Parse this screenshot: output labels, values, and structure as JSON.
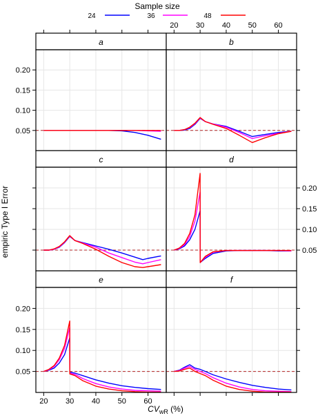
{
  "chart_data": {
    "type": "line",
    "legend": {
      "title": "Sample size",
      "placement": "top",
      "entries": [
        {
          "label": "24",
          "color": "#0000ff"
        },
        {
          "label": "36",
          "color": "#ff00ff"
        },
        {
          "label": "48",
          "color": "#ff0000"
        }
      ]
    },
    "xlabel_main": "CV",
    "xlabel_sub": "wR",
    "xlabel_unit": " (%)",
    "ylabel": "empiric Type I Error",
    "xlim": [
      17,
      67
    ],
    "ylim": [
      0,
      0.25
    ],
    "xticks": [
      20,
      30,
      40,
      50,
      60
    ],
    "yticks": [
      0.05,
      0.1,
      0.15,
      0.2
    ],
    "ytick_labels": [
      "0.05",
      "0.10",
      "0.15",
      "0.20"
    ],
    "reference_line": {
      "y": 0.05,
      "style": "dashed",
      "color": "#b22222"
    },
    "grid": true,
    "panels": [
      {
        "label": "a",
        "series": [
          {
            "name": "24",
            "x": [
              20,
              30,
              40,
              45,
              50,
              55,
              60,
              65
            ],
            "y": [
              0.05,
              0.05,
              0.05,
              0.05,
              0.049,
              0.045,
              0.038,
              0.028
            ]
          },
          {
            "name": "36",
            "x": [
              20,
              30,
              40,
              50,
              55,
              60,
              65
            ],
            "y": [
              0.05,
              0.05,
              0.05,
              0.05,
              0.05,
              0.049,
              0.048
            ]
          },
          {
            "name": "48",
            "x": [
              20,
              30,
              40,
              50,
              60,
              65
            ],
            "y": [
              0.05,
              0.05,
              0.05,
              0.05,
              0.05,
              0.05
            ]
          }
        ]
      },
      {
        "label": "b",
        "series": [
          {
            "name": "24",
            "x": [
              20,
              22,
              24,
              26,
              28,
              30,
              32,
              35,
              40,
              45,
              50,
              55,
              60,
              65
            ],
            "y": [
              0.05,
              0.05,
              0.051,
              0.055,
              0.065,
              0.08,
              0.072,
              0.066,
              0.06,
              0.048,
              0.035,
              0.04,
              0.045,
              0.048
            ]
          },
          {
            "name": "36",
            "x": [
              20,
              22,
              24,
              26,
              28,
              30,
              32,
              35,
              40,
              45,
              50,
              55,
              60,
              65
            ],
            "y": [
              0.05,
              0.05,
              0.052,
              0.057,
              0.067,
              0.081,
              0.072,
              0.066,
              0.058,
              0.045,
              0.03,
              0.037,
              0.043,
              0.048
            ]
          },
          {
            "name": "48",
            "x": [
              20,
              22,
              24,
              26,
              28,
              30,
              32,
              35,
              40,
              45,
              50,
              55,
              60,
              65
            ],
            "y": [
              0.05,
              0.05,
              0.052,
              0.058,
              0.068,
              0.082,
              0.072,
              0.065,
              0.055,
              0.038,
              0.02,
              0.032,
              0.042,
              0.048
            ]
          }
        ]
      },
      {
        "label": "c",
        "series": [
          {
            "name": "24",
            "x": [
              20,
              22,
              24,
              26,
              28,
              30,
              32,
              35,
              40,
              45,
              50,
              55,
              58,
              60,
              65
            ],
            "y": [
              0.05,
              0.05,
              0.052,
              0.057,
              0.068,
              0.083,
              0.073,
              0.068,
              0.06,
              0.052,
              0.043,
              0.033,
              0.027,
              0.03,
              0.036
            ]
          },
          {
            "name": "36",
            "x": [
              20,
              22,
              24,
              26,
              28,
              30,
              32,
              35,
              40,
              45,
              50,
              55,
              58,
              60,
              65
            ],
            "y": [
              0.05,
              0.05,
              0.052,
              0.058,
              0.069,
              0.084,
              0.073,
              0.067,
              0.057,
              0.043,
              0.032,
              0.021,
              0.017,
              0.02,
              0.027
            ]
          },
          {
            "name": "48",
            "x": [
              20,
              22,
              24,
              26,
              28,
              30,
              32,
              35,
              40,
              45,
              50,
              55,
              58,
              60,
              65
            ],
            "y": [
              0.05,
              0.05,
              0.053,
              0.059,
              0.07,
              0.085,
              0.073,
              0.066,
              0.052,
              0.035,
              0.02,
              0.01,
              0.008,
              0.01,
              0.015
            ]
          }
        ]
      },
      {
        "label": "d",
        "series": [
          {
            "name": "24",
            "x": [
              20,
              22,
              24,
              26,
              28,
              30,
              30.01,
              32,
              35,
              40,
              45,
              50,
              55,
              60,
              65
            ],
            "y": [
              0.05,
              0.053,
              0.06,
              0.075,
              0.1,
              0.145,
              0.02,
              0.03,
              0.042,
              0.048,
              0.049,
              0.049,
              0.049,
              0.048,
              0.048
            ]
          },
          {
            "name": "36",
            "x": [
              20,
              22,
              24,
              26,
              28,
              30,
              30.01,
              32,
              35,
              40,
              45,
              50,
              55,
              60,
              65
            ],
            "y": [
              0.05,
              0.054,
              0.063,
              0.083,
              0.12,
              0.19,
              0.02,
              0.033,
              0.045,
              0.049,
              0.049,
              0.049,
              0.049,
              0.049,
              0.048
            ]
          },
          {
            "name": "48",
            "x": [
              20,
              22,
              24,
              26,
              28,
              30,
              30.01,
              32,
              35,
              40,
              45,
              50,
              55,
              60,
              65
            ],
            "y": [
              0.05,
              0.055,
              0.066,
              0.09,
              0.135,
              0.235,
              0.02,
              0.035,
              0.046,
              0.049,
              0.049,
              0.049,
              0.049,
              0.049,
              0.049
            ]
          }
        ]
      },
      {
        "label": "e",
        "series": [
          {
            "name": "24",
            "x": [
              20,
              22,
              24,
              26,
              28,
              30,
              30.01,
              32,
              35,
              40,
              45,
              50,
              55,
              60,
              65
            ],
            "y": [
              0.05,
              0.053,
              0.058,
              0.07,
              0.09,
              0.13,
              0.048,
              0.046,
              0.04,
              0.03,
              0.022,
              0.016,
              0.012,
              0.009,
              0.007
            ]
          },
          {
            "name": "36",
            "x": [
              20,
              22,
              24,
              26,
              28,
              30,
              30.01,
              32,
              35,
              40,
              45,
              50,
              55,
              60,
              65
            ],
            "y": [
              0.05,
              0.054,
              0.062,
              0.078,
              0.105,
              0.155,
              0.046,
              0.043,
              0.033,
              0.021,
              0.013,
              0.008,
              0.005,
              0.004,
              0.003
            ]
          },
          {
            "name": "48",
            "x": [
              20,
              22,
              24,
              26,
              28,
              30,
              30.01,
              32,
              35,
              40,
              45,
              50,
              55,
              60,
              65
            ],
            "y": [
              0.05,
              0.055,
              0.064,
              0.082,
              0.112,
              0.17,
              0.044,
              0.04,
              0.028,
              0.015,
              0.008,
              0.004,
              0.002,
              0.001,
              0.001
            ]
          }
        ]
      },
      {
        "label": "f",
        "series": [
          {
            "name": "24",
            "x": [
              20,
              22,
              24,
              26,
              28,
              30,
              32,
              35,
              40,
              45,
              50,
              55,
              60,
              65
            ],
            "y": [
              0.05,
              0.053,
              0.06,
              0.066,
              0.058,
              0.055,
              0.05,
              0.042,
              0.032,
              0.024,
              0.017,
              0.012,
              0.008,
              0.006
            ]
          },
          {
            "name": "36",
            "x": [
              20,
              22,
              24,
              26,
              28,
              30,
              32,
              35,
              40,
              45,
              50,
              55,
              60,
              65
            ],
            "y": [
              0.05,
              0.052,
              0.058,
              0.062,
              0.055,
              0.05,
              0.045,
              0.035,
              0.022,
              0.013,
              0.007,
              0.004,
              0.003,
              0.002
            ]
          },
          {
            "name": "48",
            "x": [
              20,
              22,
              24,
              26,
              28,
              30,
              32,
              35,
              40,
              45,
              50,
              55,
              60,
              65
            ],
            "y": [
              0.05,
              0.051,
              0.055,
              0.058,
              0.05,
              0.045,
              0.04,
              0.029,
              0.015,
              0.007,
              0.003,
              0.001,
              0.001,
              0.001
            ]
          }
        ]
      }
    ]
  }
}
